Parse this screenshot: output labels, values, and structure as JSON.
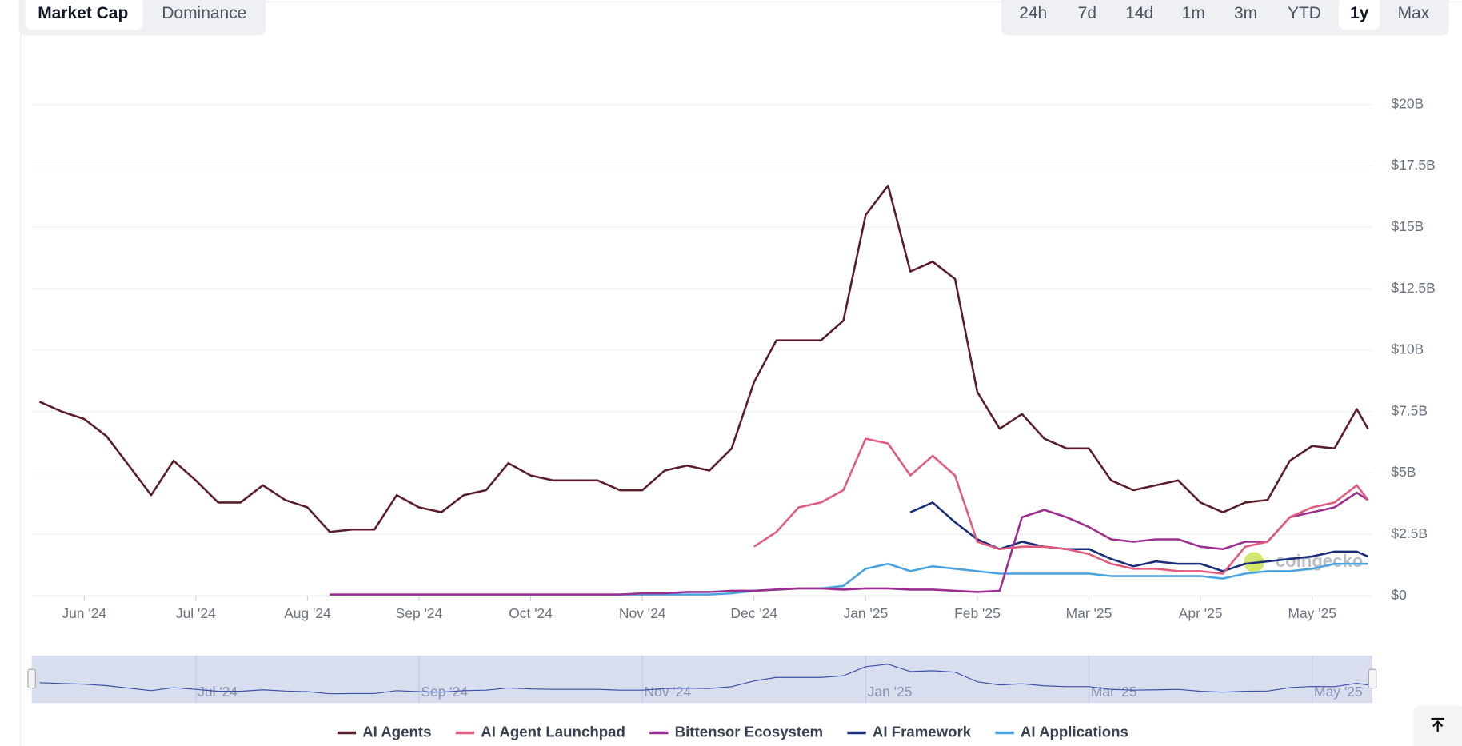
{
  "tabs": [
    "Market Cap",
    "Dominance"
  ],
  "active_tab": 0,
  "ranges": [
    "24h",
    "7d",
    "14d",
    "1m",
    "3m",
    "YTD",
    "1y",
    "Max"
  ],
  "active_range": 6,
  "watermark": "coingecko",
  "chart_data": {
    "type": "line",
    "x": [
      -0.4,
      -0.2,
      0,
      0.2,
      0.4,
      0.6,
      0.8,
      1,
      1.2,
      1.4,
      1.6,
      1.8,
      2,
      2.2,
      2.4,
      2.6,
      2.8,
      3,
      3.2,
      3.4,
      3.6,
      3.8,
      4,
      4.2,
      4.4,
      4.6,
      4.8,
      5,
      5.2,
      5.4,
      5.6,
      5.8,
      6,
      6.2,
      6.4,
      6.6,
      6.8,
      7,
      7.2,
      7.4,
      7.6,
      7.8,
      8,
      8.2,
      8.4,
      8.6,
      8.8,
      9,
      9.2,
      9.4,
      9.6,
      9.8,
      10,
      10.2,
      10.4,
      10.6,
      10.8,
      11,
      11.2,
      11.4,
      11.5
    ],
    "xlim": [
      -0.47,
      11.54
    ],
    "xticks": [
      {
        "value": 0,
        "label": "Jun '24"
      },
      {
        "value": 1,
        "label": "Jul '24"
      },
      {
        "value": 2,
        "label": "Aug '24"
      },
      {
        "value": 3,
        "label": "Sep '24"
      },
      {
        "value": 4,
        "label": "Oct '24"
      },
      {
        "value": 5,
        "label": "Nov '24"
      },
      {
        "value": 6,
        "label": "Dec '24"
      },
      {
        "value": 7,
        "label": "Jan '25"
      },
      {
        "value": 8,
        "label": "Feb '25"
      },
      {
        "value": 9,
        "label": "Mar '25"
      },
      {
        "value": 10,
        "label": "Apr '25"
      },
      {
        "value": 11,
        "label": "May '25"
      }
    ],
    "navigator_ticks": [
      {
        "value": 1,
        "label": "Jul '24"
      },
      {
        "value": 3,
        "label": "Sep '24"
      },
      {
        "value": 5,
        "label": "Nov '24"
      },
      {
        "value": 7,
        "label": "Jan '25"
      },
      {
        "value": 9,
        "label": "Mar '25"
      },
      {
        "value": 11,
        "label": "May '25"
      }
    ],
    "ylim": [
      0,
      20
    ],
    "yticks": [
      {
        "value": 0,
        "label": "$0"
      },
      {
        "value": 2.5,
        "label": "$2.5B"
      },
      {
        "value": 5,
        "label": "$5B"
      },
      {
        "value": 7.5,
        "label": "$7.5B"
      },
      {
        "value": 10,
        "label": "$10B"
      },
      {
        "value": 12.5,
        "label": "$12.5B"
      },
      {
        "value": 15,
        "label": "$15B"
      },
      {
        "value": 17.5,
        "label": "$17.5B"
      },
      {
        "value": 20,
        "label": "$20B"
      }
    ],
    "grid": true,
    "legend": "bottom",
    "series": [
      {
        "name": "AI Agents",
        "color": "#5a1e2a",
        "values": [
          7.9,
          7.5,
          7.2,
          6.5,
          5.3,
          4.1,
          5.5,
          4.7,
          3.8,
          3.8,
          4.5,
          3.9,
          3.6,
          2.6,
          2.7,
          2.7,
          4.1,
          3.6,
          3.4,
          4.1,
          4.3,
          5.4,
          4.9,
          4.7,
          4.7,
          4.7,
          4.3,
          4.3,
          5.1,
          5.3,
          5.1,
          6.0,
          8.7,
          10.4,
          10.4,
          10.4,
          11.2,
          15.5,
          16.7,
          13.2,
          13.6,
          12.9,
          8.3,
          6.8,
          7.4,
          6.4,
          6.0,
          6.0,
          4.7,
          4.3,
          4.5,
          4.7,
          3.8,
          3.4,
          3.8,
          3.9,
          5.5,
          6.1,
          6.0,
          7.6,
          6.8
        ]
      },
      {
        "name": "AI Agent Launchpad",
        "color": "#e05c7e",
        "values": [
          null,
          null,
          null,
          null,
          null,
          null,
          null,
          null,
          null,
          null,
          null,
          null,
          null,
          null,
          null,
          null,
          null,
          null,
          null,
          null,
          null,
          null,
          null,
          null,
          null,
          null,
          null,
          null,
          null,
          null,
          null,
          null,
          2.0,
          2.6,
          3.6,
          3.8,
          4.3,
          6.4,
          6.2,
          4.9,
          5.7,
          4.9,
          2.2,
          1.9,
          2.0,
          2.0,
          1.9,
          1.7,
          1.3,
          1.1,
          1.1,
          1.0,
          1.0,
          0.9,
          2.0,
          2.2,
          3.2,
          3.6,
          3.8,
          4.5,
          3.9
        ]
      },
      {
        "name": "Bittensor Ecosystem",
        "color": "#9b2f8f",
        "values": [
          null,
          null,
          null,
          null,
          null,
          null,
          null,
          null,
          null,
          null,
          null,
          null,
          null,
          0.05,
          0.05,
          0.05,
          0.05,
          0.05,
          0.05,
          0.05,
          0.05,
          0.05,
          0.05,
          0.05,
          0.05,
          0.05,
          0.05,
          0.1,
          0.1,
          0.15,
          0.15,
          0.2,
          0.2,
          0.25,
          0.3,
          0.3,
          0.25,
          0.3,
          0.3,
          0.25,
          0.25,
          0.2,
          0.15,
          0.2,
          3.2,
          3.5,
          3.2,
          2.8,
          2.3,
          2.2,
          2.3,
          2.3,
          2.0,
          1.9,
          2.2,
          2.2,
          3.2,
          3.4,
          3.6,
          4.2,
          3.9
        ]
      },
      {
        "name": "AI Framework",
        "color": "#1a2e7a",
        "values": [
          null,
          null,
          null,
          null,
          null,
          null,
          null,
          null,
          null,
          null,
          null,
          null,
          null,
          null,
          null,
          null,
          null,
          null,
          null,
          null,
          null,
          null,
          null,
          null,
          null,
          null,
          null,
          null,
          null,
          null,
          null,
          null,
          null,
          null,
          null,
          null,
          null,
          null,
          null,
          3.4,
          3.8,
          3.0,
          2.3,
          1.9,
          2.2,
          2.0,
          1.9,
          1.9,
          1.5,
          1.2,
          1.4,
          1.3,
          1.3,
          1.0,
          1.3,
          1.4,
          1.5,
          1.6,
          1.8,
          1.8,
          1.6
        ]
      },
      {
        "name": "AI Applications",
        "color": "#4aa3df",
        "values": [
          null,
          null,
          null,
          null,
          null,
          null,
          null,
          null,
          null,
          null,
          null,
          null,
          null,
          0.05,
          0.05,
          0.05,
          0.05,
          0.05,
          0.05,
          0.05,
          0.05,
          0.05,
          0.05,
          0.05,
          0.05,
          0.05,
          0.05,
          0.05,
          0.05,
          0.05,
          0.05,
          0.1,
          0.2,
          0.25,
          0.3,
          0.3,
          0.4,
          1.1,
          1.3,
          1.0,
          1.2,
          1.1,
          1.0,
          0.9,
          0.9,
          0.9,
          0.9,
          0.9,
          0.8,
          0.8,
          0.8,
          0.8,
          0.8,
          0.7,
          0.9,
          1.0,
          1.0,
          1.1,
          1.3,
          1.3,
          1.3
        ]
      }
    ]
  }
}
